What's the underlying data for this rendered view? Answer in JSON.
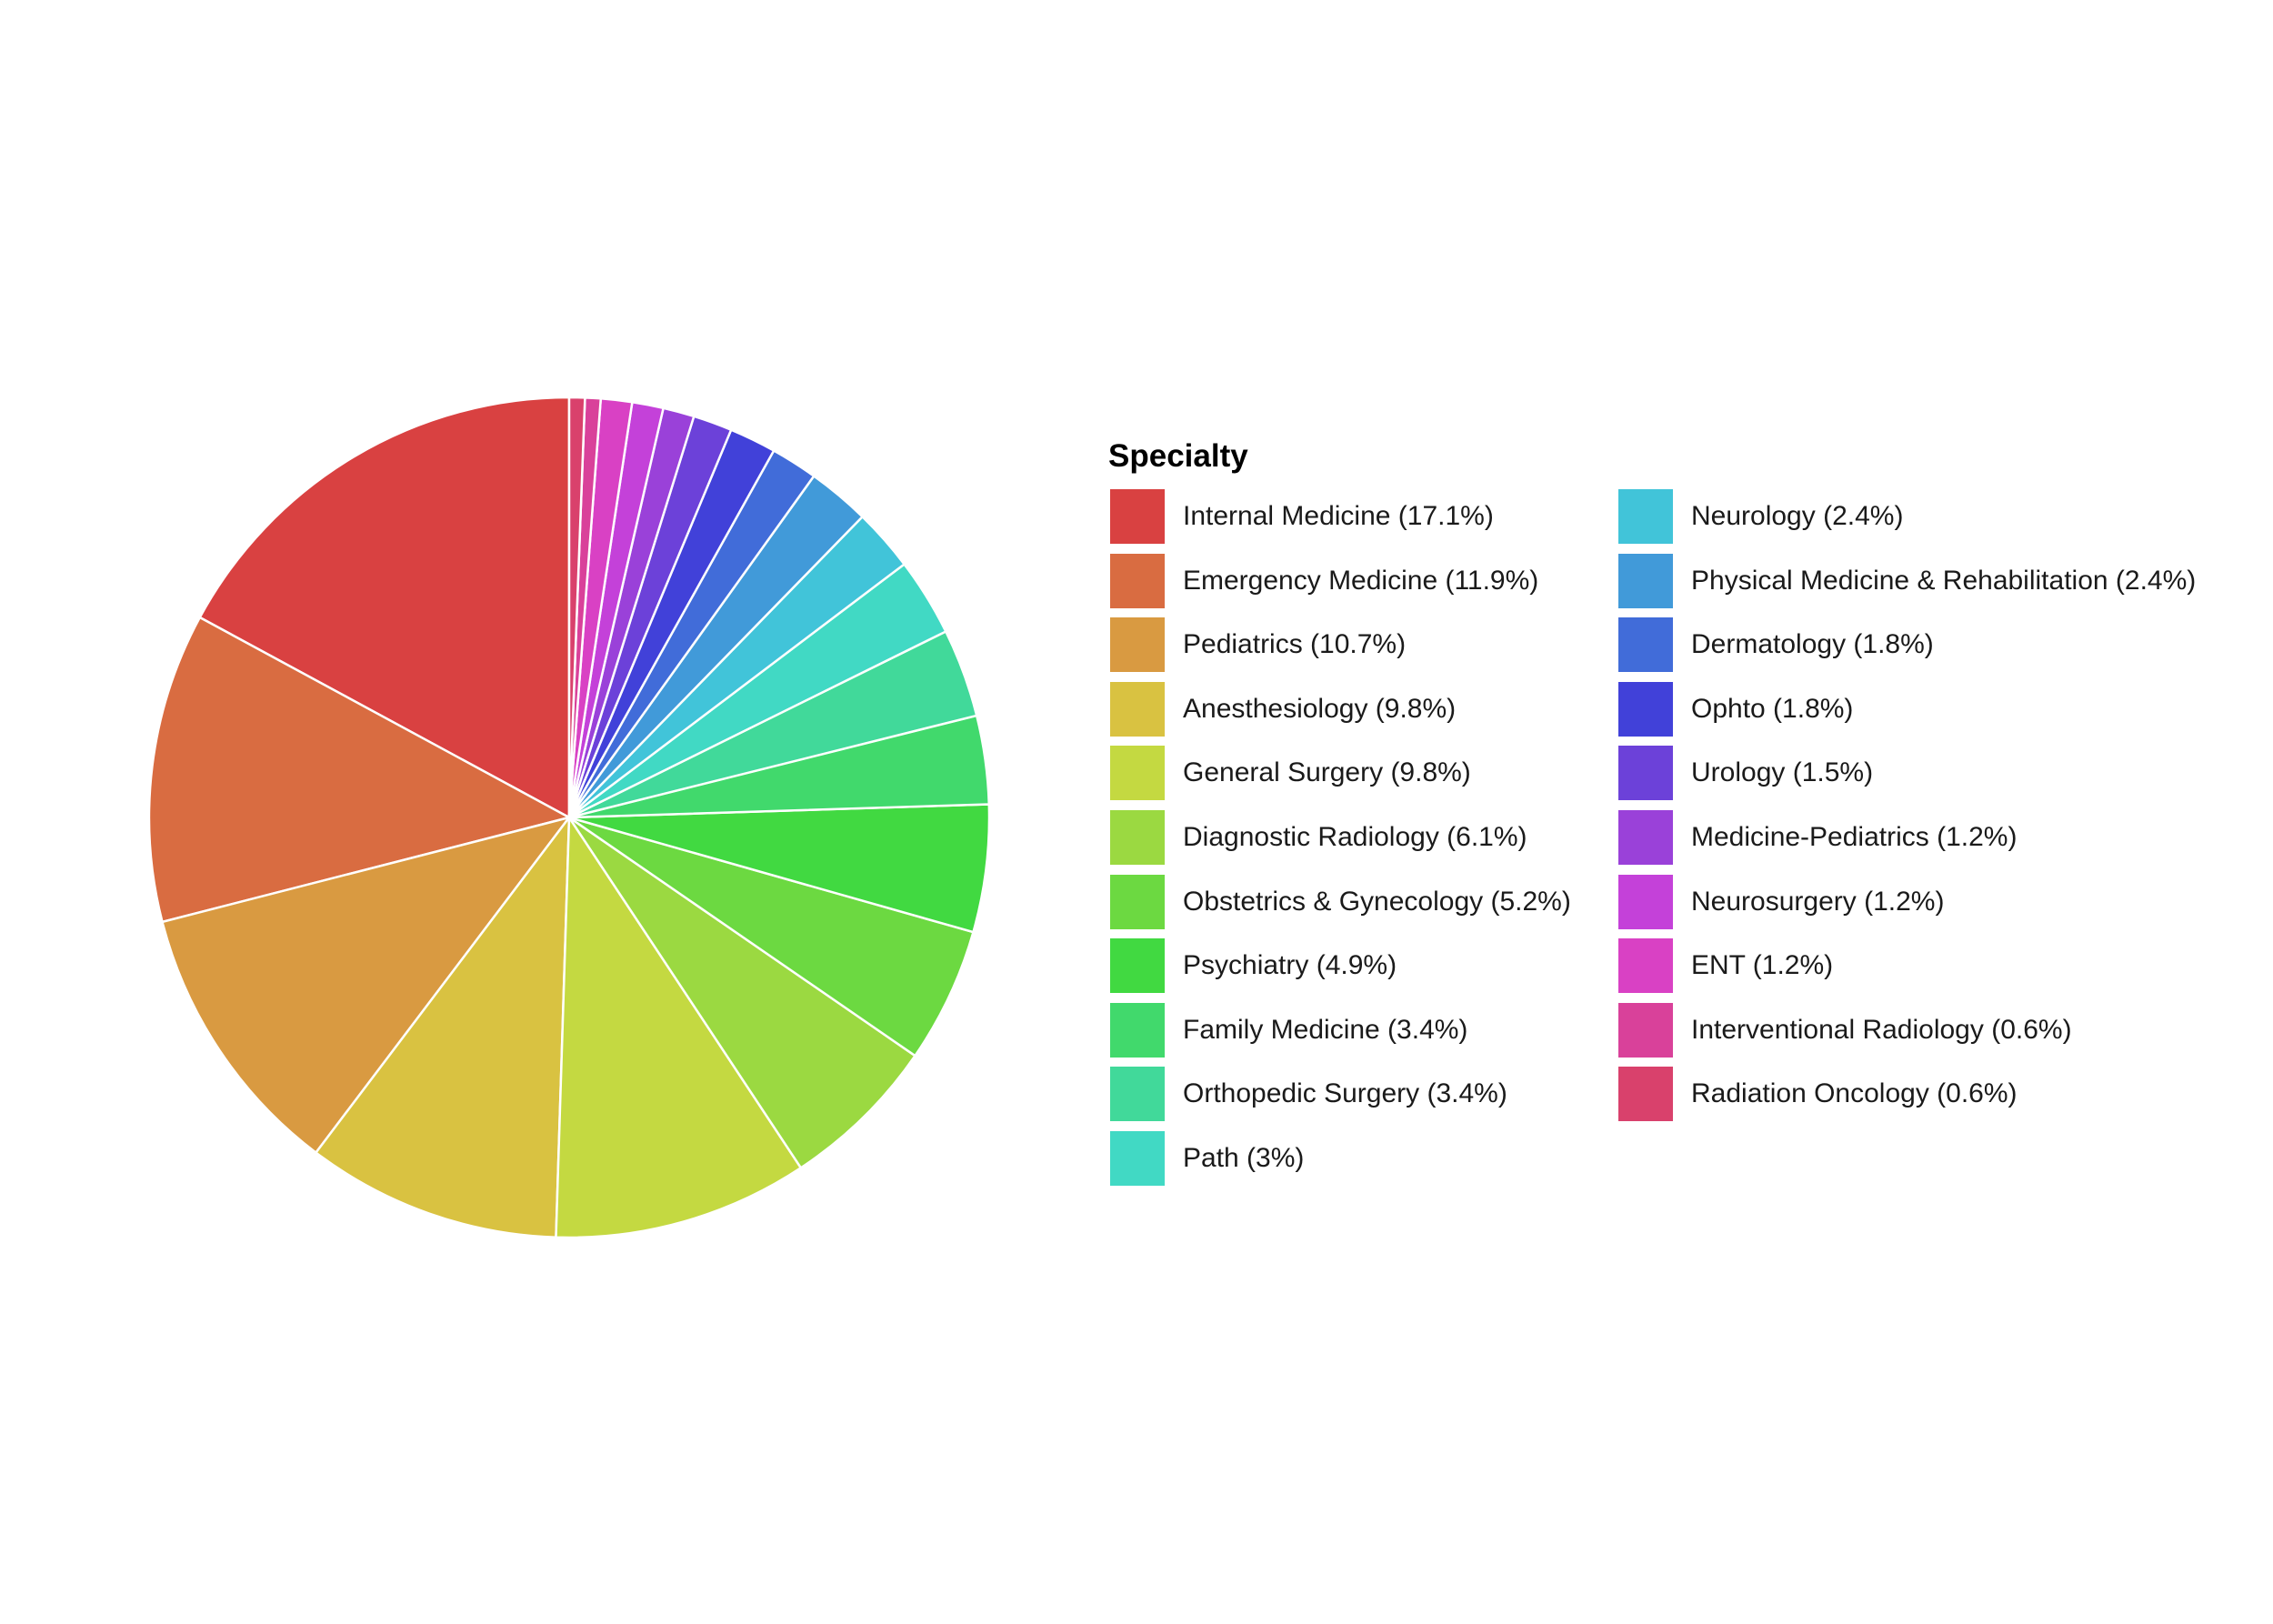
{
  "chart_data": {
    "type": "pie",
    "legend_title": "Specialty",
    "legend_position": "right",
    "slices": [
      {
        "label": "Internal Medicine (17.1%)",
        "value": 17.1,
        "color": "#D94141"
      },
      {
        "label": "Emergency Medicine (11.9%)",
        "value": 11.9,
        "color": "#D96C41"
      },
      {
        "label": "Pediatrics (10.7%)",
        "value": 10.7,
        "color": "#D99A41"
      },
      {
        "label": "Anesthesiology (9.8%)",
        "value": 9.8,
        "color": "#D9C241"
      },
      {
        "label": "General Surgery (9.8%)",
        "value": 9.8,
        "color": "#C4D941"
      },
      {
        "label": "Diagnostic Radiology (6.1%)",
        "value": 6.1,
        "color": "#9BD941"
      },
      {
        "label": "Obstetrics & Gynecology (5.2%)",
        "value": 5.2,
        "color": "#6CD941"
      },
      {
        "label": "Psychiatry (4.9%)",
        "value": 4.9,
        "color": "#41D941"
      },
      {
        "label": "Family Medicine (3.4%)",
        "value": 3.4,
        "color": "#41D96C"
      },
      {
        "label": "Orthopedic Surgery (3.4%)",
        "value": 3.4,
        "color": "#41D99A"
      },
      {
        "label": "Path (3%)",
        "value": 3.0,
        "color": "#41D9C4"
      },
      {
        "label": "Neurology (2.4%)",
        "value": 2.4,
        "color": "#41C4D9"
      },
      {
        "label": "Physical Medicine & Rehabilitation (2.4%)",
        "value": 2.4,
        "color": "#419AD9"
      },
      {
        "label": "Dermatology (1.8%)",
        "value": 1.8,
        "color": "#416CD9"
      },
      {
        "label": "Ophto (1.8%)",
        "value": 1.8,
        "color": "#4141D9"
      },
      {
        "label": "Urology (1.5%)",
        "value": 1.5,
        "color": "#6C41D9"
      },
      {
        "label": "Medicine-Pediatrics (1.2%)",
        "value": 1.2,
        "color": "#9A41D9"
      },
      {
        "label": "Neurosurgery (1.2%)",
        "value": 1.2,
        "color": "#C441D9"
      },
      {
        "label": "ENT (1.2%)",
        "value": 1.2,
        "color": "#D941C4"
      },
      {
        "label": "Interventional Radiology (0.6%)",
        "value": 0.6,
        "color": "#D9419A"
      },
      {
        "label": "Radiation Oncology (0.6%)",
        "value": 0.6,
        "color": "#D9416C"
      }
    ]
  }
}
